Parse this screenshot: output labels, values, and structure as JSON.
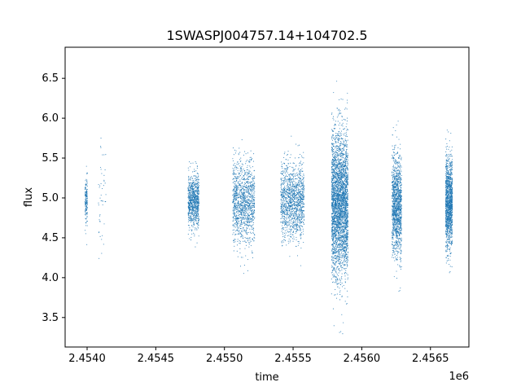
{
  "chart_data": {
    "type": "scatter",
    "title": "1SWASPJ004757.14+104702.5",
    "xlabel": "time",
    "ylabel": "flux",
    "x_offset_label": "1e6",
    "xlim": [
      2453840,
      2456780
    ],
    "ylim": [
      3.13,
      6.89
    ],
    "x_ticks": [
      2454000,
      2454500,
      2455000,
      2455500,
      2456000,
      2456500
    ],
    "x_tick_labels": [
      "2.4540",
      "2.4545",
      "2.4550",
      "2.4555",
      "2.4560",
      "2.4565"
    ],
    "y_ticks": [
      3.5,
      4.0,
      4.5,
      5.0,
      5.5,
      6.0,
      6.5
    ],
    "y_tick_labels": [
      "3.5",
      "4.0",
      "4.5",
      "5.0",
      "5.5",
      "6.0",
      "6.5"
    ],
    "grid": false,
    "marker_color": "#1f77b4",
    "series": [
      {
        "clusters": [
          {
            "x_start": 2453985,
            "x_end": 2454003,
            "center": 4.98,
            "sigma": 0.14,
            "points": 160
          },
          {
            "x_start": 2454080,
            "x_end": 2454140,
            "center": 4.95,
            "sigma": 0.35,
            "points": 45
          },
          {
            "x_start": 2454735,
            "x_end": 2454815,
            "center": 4.95,
            "sigma": 0.17,
            "points": 850
          },
          {
            "x_start": 2455060,
            "x_end": 2455220,
            "center": 4.95,
            "sigma": 0.26,
            "points": 1200
          },
          {
            "x_start": 2455410,
            "x_end": 2455580,
            "center": 4.97,
            "sigma": 0.24,
            "points": 1300
          },
          {
            "x_start": 2455780,
            "x_end": 2455900,
            "center": 4.92,
            "sigma": 0.45,
            "points": 3200
          },
          {
            "x_start": 2456220,
            "x_end": 2456290,
            "center": 4.9,
            "sigma": 0.3,
            "points": 1300
          },
          {
            "x_start": 2456610,
            "x_end": 2456660,
            "center": 4.93,
            "sigma": 0.28,
            "points": 1300
          }
        ]
      }
    ]
  }
}
